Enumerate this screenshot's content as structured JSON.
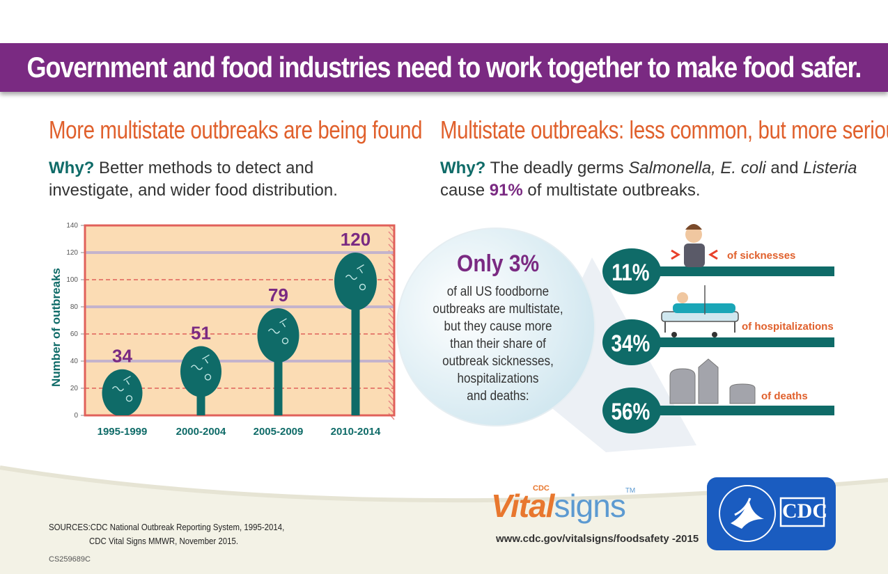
{
  "banner": {
    "title": "Government and food industries need to work together to make food safer."
  },
  "left": {
    "heading": "More multistate outbreaks are being found",
    "why_label": "Why?",
    "why_text": " Better methods to detect and investigate, and wider food distribution."
  },
  "right": {
    "heading": "Multistate outbreaks: less common, but more serious",
    "why_label": "Why?",
    "why_text_1": " The deadly germs ",
    "germs_1": "Salmonella, E. coli",
    "why_text_2": " and ",
    "germs_2": "Listeria",
    "why_text_3": " cause ",
    "why_pct": "91%",
    "why_text_4": " of multistate outbreaks."
  },
  "callout": {
    "big": "Only 3%",
    "lines": [
      "of all US foodborne",
      "outbreaks are multistate,",
      "but they cause more",
      "than their share of",
      "outbreak sicknesses,",
      "hospitalizations",
      "and deaths:"
    ]
  },
  "chart_data": [
    {
      "type": "bar",
      "categories": [
        "1995-1999",
        "2000-2004",
        "2005-2009",
        "2010-2014"
      ],
      "values": [
        34,
        51,
        79,
        120
      ],
      "title": "",
      "xlabel": "",
      "ylabel": "Number of outbreaks",
      "ylim": [
        0,
        140
      ],
      "yticks": [
        "0",
        "20",
        "40",
        "60",
        "80",
        "100",
        "120",
        "140"
      ],
      "grid": true
    },
    {
      "type": "bar",
      "categories": [
        "of sicknesses",
        "of hospitalizations",
        "of deaths"
      ],
      "labels": [
        "11%",
        "34%",
        "56%"
      ],
      "values": [
        11,
        34,
        56
      ]
    }
  ],
  "colors": {
    "purple": "#7a2a82",
    "teal": "#0f6b68",
    "orange": "#e0602c",
    "chart_bg": "#fbdcb4",
    "chart_border": "#e0605a"
  },
  "footer": {
    "sources_label": "SOURCES:",
    "sources_1": "CDC National Outbreak Reporting System, 1995-2014,",
    "sources_2": "CDC Vital Signs MMWR, November 2015.",
    "code": "CS259689C",
    "vital_cdc": "CDC",
    "vital_1": "Vital",
    "vital_2": "signs",
    "vital_tm": "TM",
    "url": "www.cdc.gov/vitalsigns/foodsafety -2015",
    "logo_text": "CDC"
  }
}
